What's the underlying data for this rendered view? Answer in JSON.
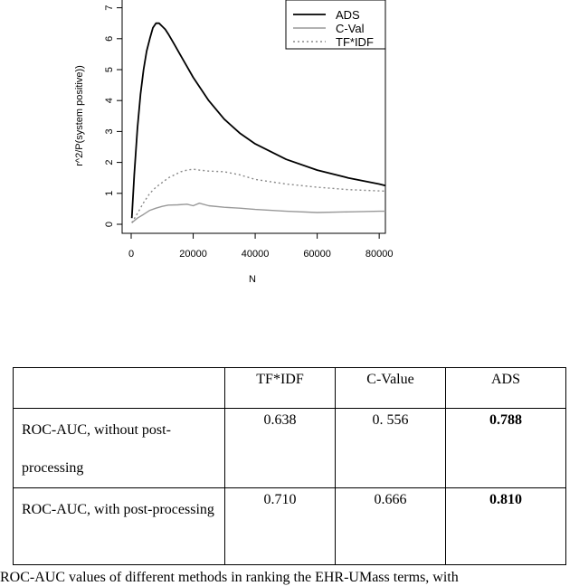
{
  "chart_data": {
    "type": "line",
    "title": "",
    "xlabel": "N",
    "ylabel": "r^2/P(system positive))",
    "xlim": [
      0,
      82000
    ],
    "ylim": [
      0,
      7
    ],
    "x_ticks": [
      "0",
      "20000",
      "40000",
      "60000",
      "80000"
    ],
    "y_ticks": [
      "0",
      "1",
      "2",
      "3",
      "4",
      "5",
      "6",
      "7"
    ],
    "legend_position": "top-right",
    "series": [
      {
        "name": "ADS",
        "color": "#000000",
        "style": "solid",
        "x": [
          200,
          1000,
          2000,
          3000,
          4000,
          5000,
          6000,
          7000,
          8000,
          9000,
          10000,
          11000,
          12000,
          14000,
          16000,
          18000,
          20000,
          25000,
          30000,
          35000,
          40000,
          50000,
          60000,
          70000,
          80000,
          82000
        ],
        "y": [
          0.2,
          1.6,
          3.1,
          4.2,
          5.0,
          5.6,
          6.0,
          6.35,
          6.5,
          6.5,
          6.4,
          6.3,
          6.15,
          5.8,
          5.45,
          5.1,
          4.75,
          4.0,
          3.4,
          2.95,
          2.6,
          2.1,
          1.75,
          1.5,
          1.3,
          1.25
        ]
      },
      {
        "name": "C-Val",
        "color": "#999999",
        "style": "solid",
        "x": [
          200,
          2000,
          4000,
          6000,
          8000,
          10000,
          12000,
          15000,
          18000,
          20000,
          22000,
          25000,
          30000,
          35000,
          40000,
          50000,
          60000,
          70000,
          80000,
          82000
        ],
        "y": [
          0.05,
          0.2,
          0.32,
          0.45,
          0.52,
          0.58,
          0.62,
          0.63,
          0.65,
          0.6,
          0.68,
          0.6,
          0.55,
          0.52,
          0.48,
          0.42,
          0.38,
          0.4,
          0.42,
          0.42
        ]
      },
      {
        "name": "TF*IDF",
        "color": "#888888",
        "style": "dotted",
        "x": [
          200,
          2000,
          4000,
          6000,
          8000,
          10000,
          12000,
          14000,
          16000,
          18000,
          20000,
          22000,
          25000,
          30000,
          35000,
          40000,
          50000,
          60000,
          70000,
          80000,
          82000
        ],
        "y": [
          0.05,
          0.35,
          0.7,
          1.0,
          1.2,
          1.35,
          1.5,
          1.6,
          1.7,
          1.75,
          1.78,
          1.75,
          1.72,
          1.7,
          1.6,
          1.45,
          1.3,
          1.2,
          1.12,
          1.08,
          1.07
        ]
      }
    ]
  },
  "table": {
    "headers": [
      "",
      "TF*IDF",
      "C-Value",
      "ADS"
    ],
    "rows": [
      {
        "label": "ROC-AUC, without post-processing",
        "values": [
          "0.638",
          "0. 556",
          "0.788"
        ],
        "bold_index": 2
      },
      {
        "label": "ROC-AUC, with post-processing",
        "values": [
          "0.710",
          "0.666",
          "0.810"
        ],
        "bold_index": 2
      }
    ]
  },
  "caption": "ROC-AUC values of different methods in ranking the EHR-UMass terms, with"
}
